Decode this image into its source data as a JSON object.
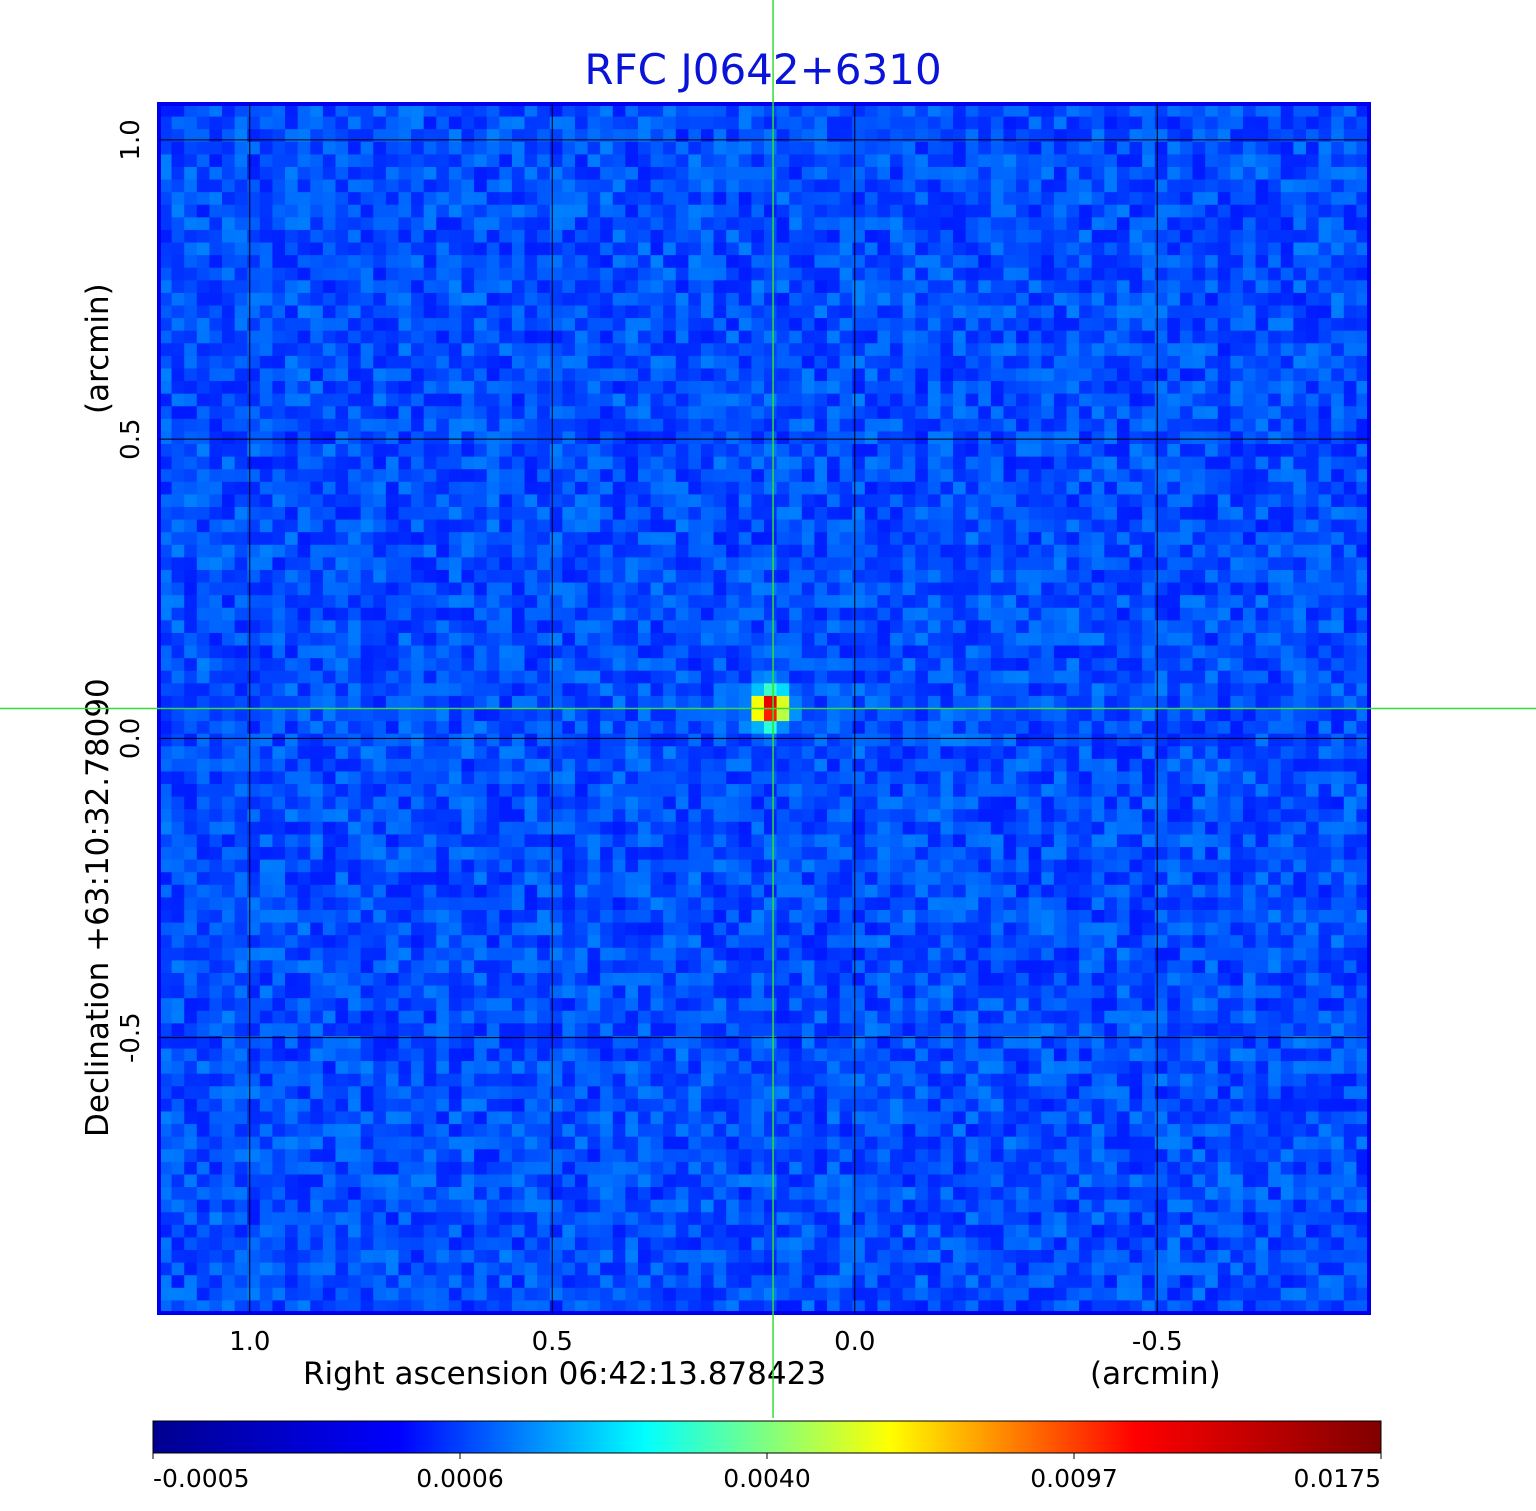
{
  "chart_data": {
    "type": "heatmap",
    "title": "RFC J0642+6310",
    "x_axis": {
      "label": "Right ascension  06:42:13.878423",
      "unit_label": "(arcmin)",
      "range": [
        1.15,
        -0.85
      ],
      "ticks": [
        1.0,
        0.5,
        0.0,
        -0.5
      ],
      "tick_labels": [
        "1.0",
        "0.5",
        "0.0",
        "-0.5"
      ]
    },
    "y_axis": {
      "label": "Declination  +63:10:32.78090",
      "unit_label": "(arcmin)",
      "range": [
        -0.96,
        1.06
      ],
      "ticks": [
        1.0,
        0.5,
        0.0,
        -0.5
      ],
      "tick_labels": [
        "1.0",
        "0.5",
        "0.0",
        "-0.5"
      ]
    },
    "grid": true,
    "colormap": "jet",
    "colorbar": {
      "tick_labels": [
        "-0.0005",
        "0.0006",
        "0.0040",
        "0.0097",
        "0.0175"
      ],
      "colors": [
        "#00008f",
        "#0000ff",
        "#00ffff",
        "#ffff00",
        "#ff0000",
        "#800000"
      ]
    },
    "source": {
      "ra_offset_arcmin": 0.14,
      "dec_offset_arcmin": 0.05,
      "peak": 0.0175
    },
    "crosshair": {
      "ra_offset_arcmin": 0.135,
      "dec_offset_arcmin": 0.05,
      "color": "#33dd33"
    },
    "frame_color": "#0000ee",
    "background_level": 0.0
  }
}
